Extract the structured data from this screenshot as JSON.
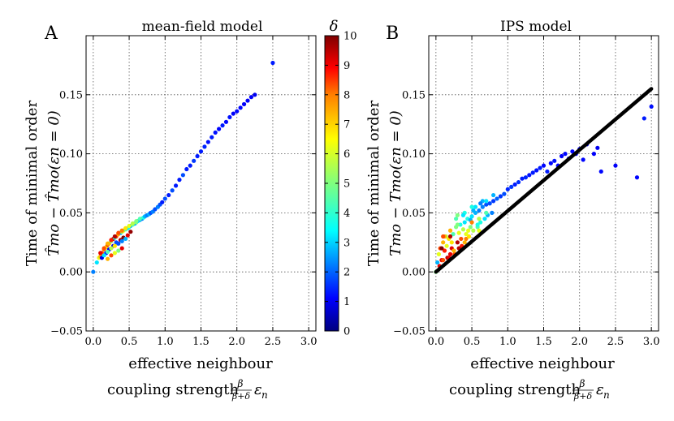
{
  "chart_data": [
    {
      "type": "scatter",
      "panel_label": "A",
      "title": "mean-field model",
      "xlabel": {
        "line1": "effective neighbour",
        "line2": "coupling strength"
      },
      "ylabel": {
        "line1": "Time of minimal order",
        "line2": "T̂mo − T̂mo(εn = 0)"
      },
      "xlim": [
        -0.1,
        3.1
      ],
      "ylim": [
        -0.05,
        0.2
      ],
      "xticks": [
        "0.0",
        "0.5",
        "1.0",
        "1.5",
        "2.0",
        "2.5",
        "3.0"
      ],
      "yticks": [
        "−0.05",
        "0.00",
        "0.05",
        "0.10",
        "0.15"
      ],
      "grid": true,
      "color_by": "delta",
      "series": [
        {
          "name": "mean-field points",
          "x": [
            0.0,
            0.05,
            0.08,
            0.1,
            0.12,
            0.15,
            0.18,
            0.2,
            0.22,
            0.25,
            0.28,
            0.3,
            0.32,
            0.35,
            0.38,
            0.4,
            0.42,
            0.45,
            0.48,
            0.5,
            0.52,
            0.55,
            0.58,
            0.6,
            0.62,
            0.65,
            0.68,
            0.7,
            0.72,
            0.75,
            0.78,
            0.8,
            0.83,
            0.86,
            0.9,
            0.93,
            0.96,
            1.0,
            1.05,
            1.1,
            1.15,
            1.2,
            1.25,
            1.3,
            1.35,
            1.4,
            1.45,
            1.5,
            1.55,
            1.6,
            1.65,
            1.7,
            1.75,
            1.8,
            1.85,
            1.9,
            1.95,
            2.0,
            2.05,
            2.1,
            2.15,
            2.2,
            2.25,
            2.5,
            0.1,
            0.15,
            0.2,
            0.25,
            0.3,
            0.35,
            0.4,
            0.45,
            0.5,
            0.55,
            0.6,
            0.65,
            0.12,
            0.18,
            0.22,
            0.28,
            0.32,
            0.38,
            0.42,
            0.48,
            0.52,
            0.15,
            0.2,
            0.25,
            0.3,
            0.35,
            0.4,
            0.45,
            0.2,
            0.25,
            0.3,
            0.35,
            0.4
          ],
          "y": [
            0.0,
            0.008,
            0.012,
            0.013,
            0.016,
            0.019,
            0.021,
            0.023,
            0.024,
            0.026,
            0.028,
            0.029,
            0.03,
            0.032,
            0.033,
            0.034,
            0.035,
            0.036,
            0.037,
            0.038,
            0.039,
            0.04,
            0.041,
            0.042,
            0.043,
            0.044,
            0.045,
            0.046,
            0.047,
            0.048,
            0.049,
            0.05,
            0.051,
            0.053,
            0.055,
            0.057,
            0.059,
            0.062,
            0.065,
            0.069,
            0.073,
            0.078,
            0.082,
            0.087,
            0.09,
            0.094,
            0.098,
            0.102,
            0.106,
            0.11,
            0.114,
            0.118,
            0.121,
            0.124,
            0.127,
            0.131,
            0.134,
            0.136,
            0.139,
            0.142,
            0.145,
            0.148,
            0.15,
            0.177,
            0.016,
            0.02,
            0.024,
            0.027,
            0.03,
            0.033,
            0.035,
            0.037,
            0.039,
            0.041,
            0.043,
            0.045,
            0.012,
            0.016,
            0.019,
            0.022,
            0.025,
            0.027,
            0.029,
            0.031,
            0.034,
            0.014,
            0.017,
            0.02,
            0.022,
            0.024,
            0.026,
            0.028,
            0.011,
            0.014,
            0.016,
            0.018,
            0.02
          ],
          "delta": [
            2.5,
            3.5,
            6.0,
            7.0,
            8.0,
            7.5,
            6.5,
            8.5,
            7.0,
            5.0,
            9.5,
            4.0,
            8.0,
            7.0,
            3.0,
            5.5,
            6.0,
            4.5,
            3.5,
            4.0,
            3.0,
            4.5,
            3.0,
            5.0,
            3.5,
            3.0,
            2.5,
            4.0,
            3.0,
            2.5,
            3.0,
            2.0,
            2.5,
            2.0,
            2.5,
            2.0,
            1.5,
            2.0,
            1.5,
            2.0,
            1.5,
            1.5,
            2.0,
            1.5,
            1.5,
            1.8,
            1.5,
            1.5,
            1.6,
            1.4,
            1.5,
            1.4,
            1.3,
            1.5,
            1.3,
            1.4,
            1.2,
            1.3,
            1.3,
            1.2,
            1.2,
            1.2,
            1.1,
            1.5,
            9.0,
            8.0,
            7.0,
            8.5,
            9.5,
            8.0,
            7.5,
            6.5,
            6.0,
            5.5,
            5.0,
            4.5,
            1.0,
            1.5,
            1.2,
            1.0,
            2.0,
            9.5,
            10.0,
            9.0,
            9.8,
            3.5,
            4.5,
            5.5,
            6.5,
            2.0,
            2.5,
            3.0,
            7.0,
            8.0,
            6.0,
            5.0,
            9.0
          ]
        }
      ]
    },
    {
      "type": "scatter",
      "panel_label": "B",
      "title": "IPS model",
      "xlabel": {
        "line1": "effective neighbour",
        "line2": "coupling strength"
      },
      "ylabel": {
        "line1": "Time of minimal order",
        "line2": "Tmo − Tmo(εn = 0)"
      },
      "xlim": [
        -0.1,
        3.1
      ],
      "ylim": [
        -0.05,
        0.2
      ],
      "xticks": [
        "0.0",
        "0.5",
        "1.0",
        "1.5",
        "2.0",
        "2.5",
        "3.0"
      ],
      "yticks": [
        "−0.05",
        "0.00",
        "0.05",
        "0.10",
        "0.15"
      ],
      "grid": true,
      "color_by": "delta",
      "fit_line": {
        "x": [
          0.0,
          3.0
        ],
        "y": [
          0.0,
          0.155
        ]
      },
      "series": [
        {
          "name": "IPS points",
          "x": [
            0.0,
            0.02,
            0.04,
            0.06,
            0.08,
            0.1,
            0.12,
            0.14,
            0.16,
            0.18,
            0.2,
            0.22,
            0.24,
            0.26,
            0.28,
            0.3,
            0.32,
            0.34,
            0.36,
            0.38,
            0.4,
            0.42,
            0.44,
            0.46,
            0.48,
            0.5,
            0.52,
            0.55,
            0.58,
            0.6,
            0.62,
            0.65,
            0.68,
            0.7,
            0.72,
            0.75,
            0.78,
            0.8,
            0.85,
            0.9,
            0.95,
            1.0,
            1.05,
            1.1,
            1.15,
            1.2,
            1.25,
            1.3,
            1.35,
            1.4,
            1.45,
            1.5,
            1.55,
            1.6,
            1.65,
            1.7,
            1.75,
            1.8,
            1.85,
            1.9,
            1.95,
            2.0,
            2.05,
            2.1,
            2.2,
            2.25,
            2.3,
            2.5,
            2.8,
            2.9,
            3.0,
            0.05,
            0.1,
            0.15,
            0.2,
            0.25,
            0.3,
            0.35,
            0.4,
            0.45,
            0.5,
            0.55,
            0.6,
            0.65,
            0.7,
            0.08,
            0.12,
            0.18,
            0.22,
            0.28,
            0.32,
            0.38,
            0.42,
            0.48,
            0.52,
            0.58,
            0.62,
            0.1,
            0.2,
            0.3,
            0.4,
            0.5,
            0.6,
            0.7,
            0.8
          ],
          "y": [
            0.0,
            0.008,
            0.015,
            0.02,
            0.01,
            0.025,
            0.018,
            0.03,
            0.012,
            0.028,
            0.035,
            0.02,
            0.032,
            0.015,
            0.038,
            0.025,
            0.033,
            0.04,
            0.022,
            0.036,
            0.042,
            0.028,
            0.045,
            0.03,
            0.044,
            0.047,
            0.035,
            0.05,
            0.038,
            0.052,
            0.042,
            0.055,
            0.045,
            0.057,
            0.048,
            0.058,
            0.05,
            0.06,
            0.062,
            0.064,
            0.066,
            0.07,
            0.072,
            0.074,
            0.076,
            0.079,
            0.08,
            0.082,
            0.084,
            0.086,
            0.088,
            0.09,
            0.085,
            0.092,
            0.094,
            0.09,
            0.098,
            0.1,
            0.096,
            0.102,
            0.1,
            0.104,
            0.095,
            0.108,
            0.1,
            0.105,
            0.085,
            0.09,
            0.08,
            0.13,
            0.14,
            0.005,
            0.01,
            0.022,
            0.03,
            0.018,
            0.04,
            0.028,
            0.05,
            0.035,
            0.042,
            0.055,
            0.045,
            0.06,
            0.05,
            0.02,
            0.03,
            0.012,
            0.025,
            0.045,
            0.02,
            0.048,
            0.032,
            0.038,
            0.052,
            0.04,
            0.058,
            0.03,
            0.015,
            0.048,
            0.025,
            0.055,
            0.035,
            0.06,
            0.065
          ],
          "delta": [
            5.0,
            3.0,
            6.0,
            8.0,
            9.0,
            7.0,
            8.5,
            5.5,
            9.5,
            6.5,
            7.0,
            9.0,
            4.5,
            8.0,
            5.0,
            9.5,
            6.0,
            4.0,
            8.5,
            5.5,
            3.5,
            7.5,
            4.0,
            6.5,
            3.0,
            3.5,
            5.5,
            3.0,
            4.5,
            2.5,
            4.0,
            2.5,
            3.5,
            2.0,
            3.0,
            2.0,
            2.5,
            1.8,
            2.2,
            1.8,
            2.0,
            1.6,
            1.8,
            1.5,
            1.7,
            1.5,
            1.6,
            1.4,
            1.5,
            1.4,
            1.5,
            1.3,
            1.5,
            1.3,
            1.4,
            1.3,
            1.2,
            1.3,
            1.2,
            1.3,
            1.2,
            1.2,
            1.3,
            1.1,
            1.2,
            1.1,
            1.3,
            1.2,
            1.3,
            1.5,
            1.4,
            9.0,
            8.0,
            6.0,
            9.5,
            7.0,
            5.0,
            8.0,
            4.0,
            6.0,
            7.5,
            3.5,
            5.5,
            3.0,
            4.5,
            10.0,
            7.0,
            9.0,
            6.5,
            4.5,
            9.5,
            3.5,
            6.0,
            5.0,
            3.0,
            4.0,
            2.5,
            8.0,
            9.0,
            5.0,
            7.0,
            4.0,
            6.0,
            3.5,
            3.0
          ]
        }
      ]
    },
    {
      "type": "colorbar",
      "label": "δ",
      "range": [
        0,
        10
      ],
      "ticks": [
        "0",
        "1",
        "2",
        "3",
        "4",
        "5",
        "6",
        "7",
        "8",
        "9",
        "10"
      ]
    }
  ],
  "formula": {
    "frac_num": "β",
    "frac_den": "β+δ",
    "epsilon": "ε",
    "subscript_n": "n"
  },
  "colors": {
    "jet": [
      "#00007f",
      "#0000ff",
      "#007fff",
      "#00ffff",
      "#7fff7f",
      "#ffff00",
      "#ff7f00",
      "#ff0000",
      "#7f0000"
    ],
    "line": "#000000",
    "grid": "#555555"
  }
}
